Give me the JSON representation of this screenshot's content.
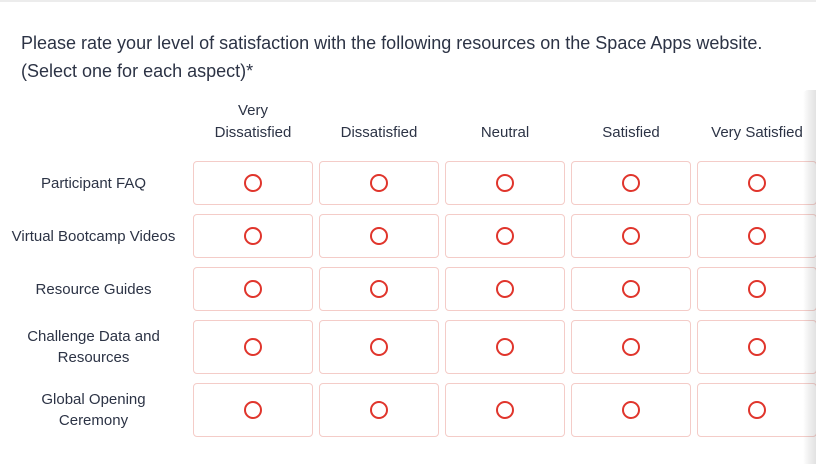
{
  "question": {
    "text": "Please rate your level of satisfaction with the following resources on the Space Apps website. (Select one for each aspect)",
    "required_marker": "*"
  },
  "matrix": {
    "column_headers": [
      "Very Dissatisfied",
      "Dissatisfied",
      "Neutral",
      "Satisfied",
      "Very Satisfied"
    ],
    "row_labels": [
      "Participant FAQ",
      "Virtual Bootcamp Videos",
      "Resource Guides",
      "Challenge Data and Resources",
      "Global Opening Ceremony"
    ]
  },
  "colors": {
    "radio_ring": "#e0352c",
    "cell_border": "#f4ccc8",
    "text": "#2c3345",
    "top_border": "#ececec"
  }
}
